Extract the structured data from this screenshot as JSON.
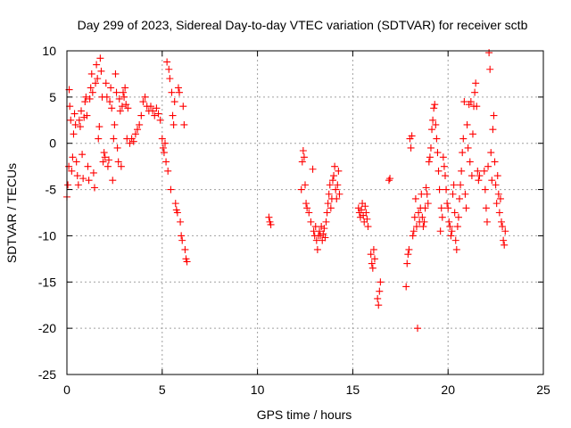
{
  "chart_data": {
    "type": "scatter",
    "title": "Day 299 of 2023, Sidereal Day-to-day VTEC variation (SDTVAR) for receiver sctb",
    "xlabel": "GPS time / hours",
    "ylabel": "SDTVAR / TECUs",
    "xlim": [
      0,
      25
    ],
    "ylim": [
      -25,
      10
    ],
    "xticks": [
      0,
      5,
      10,
      15,
      20,
      25
    ],
    "yticks": [
      -25,
      -20,
      -15,
      -10,
      -5,
      0,
      5,
      10
    ],
    "xtick_labels": [
      "0",
      "5",
      "10",
      "15",
      "20",
      "25"
    ],
    "ytick_labels": [
      "-25",
      "-20",
      "-15",
      "-10",
      "-5",
      "0",
      "5",
      "10"
    ],
    "grid": true,
    "marker": "+",
    "color": "#ff0000",
    "series": [
      {
        "name": "SDTVAR",
        "points": [
          [
            0.0,
            -5.8
          ],
          [
            0.05,
            -4.5
          ],
          [
            0.1,
            -2.5
          ],
          [
            0.12,
            5.8
          ],
          [
            0.15,
            4.0
          ],
          [
            0.2,
            2.5
          ],
          [
            0.25,
            -3.0
          ],
          [
            0.3,
            -1.5
          ],
          [
            0.35,
            1.0
          ],
          [
            0.4,
            3.2
          ],
          [
            0.45,
            2.0
          ],
          [
            0.5,
            -2.0
          ],
          [
            0.55,
            -3.5
          ],
          [
            0.6,
            -4.5
          ],
          [
            0.65,
            2.5
          ],
          [
            0.7,
            1.8
          ],
          [
            0.75,
            3.5
          ],
          [
            0.8,
            -1.2
          ],
          [
            0.85,
            -3.8
          ],
          [
            0.9,
            2.8
          ],
          [
            0.95,
            4.5
          ],
          [
            1.0,
            5.0
          ],
          [
            1.05,
            3.0
          ],
          [
            1.1,
            -2.5
          ],
          [
            1.15,
            -4.0
          ],
          [
            1.2,
            4.8
          ],
          [
            1.25,
            6.0
          ],
          [
            1.3,
            7.5
          ],
          [
            1.35,
            5.5
          ],
          [
            1.4,
            -3.2
          ],
          [
            1.45,
            -4.8
          ],
          [
            1.5,
            6.5
          ],
          [
            1.55,
            8.5
          ],
          [
            1.6,
            7.0
          ],
          [
            1.65,
            0.5
          ],
          [
            1.7,
            1.8
          ],
          [
            1.75,
            9.2
          ],
          [
            1.8,
            7.8
          ],
          [
            1.85,
            5.0
          ],
          [
            1.9,
            -2.0
          ],
          [
            1.95,
            -1.0
          ],
          [
            2.0,
            -1.5
          ],
          [
            2.05,
            6.5
          ],
          [
            2.1,
            5.0
          ],
          [
            2.15,
            -2.5
          ],
          [
            2.2,
            -1.8
          ],
          [
            2.25,
            4.5
          ],
          [
            2.3,
            6.0
          ],
          [
            2.35,
            3.8
          ],
          [
            2.4,
            -4.0
          ],
          [
            2.45,
            0.5
          ],
          [
            2.5,
            2.0
          ],
          [
            2.55,
            7.5
          ],
          [
            2.6,
            5.5
          ],
          [
            2.65,
            -0.5
          ],
          [
            2.7,
            -2.0
          ],
          [
            2.75,
            4.8
          ],
          [
            2.8,
            3.5
          ],
          [
            2.85,
            -2.5
          ],
          [
            2.9,
            4.0
          ],
          [
            2.95,
            5.5
          ],
          [
            3.0,
            5.0
          ],
          [
            3.05,
            6.0
          ],
          [
            3.1,
            4.2
          ],
          [
            3.15,
            0.5
          ],
          [
            3.2,
            3.8
          ],
          [
            3.3,
            0.0
          ],
          [
            3.4,
            0.5
          ],
          [
            3.5,
            0.2
          ],
          [
            3.6,
            1.0
          ],
          [
            3.7,
            1.5
          ],
          [
            3.8,
            2.0
          ],
          [
            3.9,
            3.0
          ],
          [
            4.0,
            4.5
          ],
          [
            4.1,
            5.0
          ],
          [
            4.2,
            4.0
          ],
          [
            4.3,
            3.5
          ],
          [
            4.4,
            4.0
          ],
          [
            4.5,
            3.5
          ],
          [
            4.6,
            3.0
          ],
          [
            4.7,
            3.8
          ],
          [
            4.8,
            3.2
          ],
          [
            4.9,
            2.5
          ],
          [
            5.0,
            0.5
          ],
          [
            5.05,
            -0.5
          ],
          [
            5.1,
            -1.0
          ],
          [
            5.15,
            0.0
          ],
          [
            5.2,
            -2.0
          ],
          [
            5.25,
            8.8
          ],
          [
            5.3,
            -3.0
          ],
          [
            5.35,
            8.0
          ],
          [
            5.4,
            7.0
          ],
          [
            5.45,
            -5.0
          ],
          [
            5.5,
            5.5
          ],
          [
            5.55,
            3.0
          ],
          [
            5.6,
            2.0
          ],
          [
            5.65,
            4.5
          ],
          [
            5.7,
            -6.5
          ],
          [
            5.75,
            -7.2
          ],
          [
            5.8,
            -7.5
          ],
          [
            5.85,
            6.0
          ],
          [
            5.9,
            5.5
          ],
          [
            5.95,
            -8.5
          ],
          [
            6.0,
            -10.0
          ],
          [
            6.05,
            -10.5
          ],
          [
            6.1,
            4.0
          ],
          [
            6.15,
            2.0
          ],
          [
            6.2,
            -11.5
          ],
          [
            6.25,
            -12.5
          ],
          [
            6.3,
            -12.8
          ],
          [
            10.6,
            -8.0
          ],
          [
            10.65,
            -8.5
          ],
          [
            10.7,
            -8.8
          ],
          [
            12.3,
            -5.0
          ],
          [
            12.35,
            -2.0
          ],
          [
            12.4,
            -0.8
          ],
          [
            12.45,
            -1.5
          ],
          [
            12.5,
            -4.5
          ],
          [
            12.55,
            -6.5
          ],
          [
            12.6,
            -7.0
          ],
          [
            12.7,
            -7.5
          ],
          [
            12.8,
            -8.5
          ],
          [
            12.9,
            -2.8
          ],
          [
            12.95,
            -9.5
          ],
          [
            13.0,
            -10.0
          ],
          [
            13.05,
            -9.0
          ],
          [
            13.1,
            -10.5
          ],
          [
            13.15,
            -11.5
          ],
          [
            13.2,
            -10.0
          ],
          [
            13.25,
            -9.5
          ],
          [
            13.3,
            -10.0
          ],
          [
            13.35,
            -9.0
          ],
          [
            13.4,
            -10.5
          ],
          [
            13.45,
            -9.8
          ],
          [
            13.5,
            -9.2
          ],
          [
            13.55,
            -10.2
          ],
          [
            13.6,
            -8.5
          ],
          [
            13.65,
            -7.5
          ],
          [
            13.7,
            -6.5
          ],
          [
            13.75,
            -5.5
          ],
          [
            13.8,
            -4.5
          ],
          [
            13.85,
            -7.0
          ],
          [
            13.9,
            -6.0
          ],
          [
            13.95,
            -4.0
          ],
          [
            14.0,
            -3.5
          ],
          [
            14.05,
            -2.5
          ],
          [
            14.1,
            -5.0
          ],
          [
            14.15,
            -6.0
          ],
          [
            14.2,
            -4.5
          ],
          [
            14.25,
            -3.0
          ],
          [
            14.3,
            -5.5
          ],
          [
            15.3,
            -7.0
          ],
          [
            15.35,
            -7.5
          ],
          [
            15.4,
            -8.0
          ],
          [
            15.45,
            -7.2
          ],
          [
            15.5,
            -6.5
          ],
          [
            15.55,
            -7.8
          ],
          [
            15.6,
            -8.5
          ],
          [
            15.65,
            -6.8
          ],
          [
            15.7,
            -7.5
          ],
          [
            15.75,
            -8.2
          ],
          [
            15.8,
            -9.0
          ],
          [
            15.95,
            -12.0
          ],
          [
            16.0,
            -13.0
          ],
          [
            16.05,
            -13.5
          ],
          [
            16.1,
            -11.5
          ],
          [
            16.15,
            -12.5
          ],
          [
            16.3,
            -16.8
          ],
          [
            16.35,
            -17.5
          ],
          [
            16.4,
            -16.0
          ],
          [
            16.45,
            -15.0
          ],
          [
            16.9,
            -4.0
          ],
          [
            16.95,
            -3.8
          ],
          [
            17.8,
            -15.5
          ],
          [
            17.85,
            -13.0
          ],
          [
            17.9,
            -12.0
          ],
          [
            17.95,
            -11.5
          ],
          [
            18.0,
            0.5
          ],
          [
            18.05,
            -0.5
          ],
          [
            18.1,
            0.8
          ],
          [
            18.15,
            -10.0
          ],
          [
            18.2,
            -9.5
          ],
          [
            18.25,
            -8.0
          ],
          [
            18.3,
            -6.0
          ],
          [
            18.35,
            -9.0
          ],
          [
            18.4,
            -20.0
          ],
          [
            18.45,
            -7.5
          ],
          [
            18.5,
            -8.5
          ],
          [
            18.55,
            -7.0
          ],
          [
            18.6,
            -5.5
          ],
          [
            18.65,
            -8.0
          ],
          [
            18.7,
            -9.0
          ],
          [
            18.75,
            -8.5
          ],
          [
            18.8,
            -7.0
          ],
          [
            18.85,
            -4.8
          ],
          [
            18.9,
            -5.5
          ],
          [
            18.95,
            -6.5
          ],
          [
            19.0,
            -2.0
          ],
          [
            19.05,
            -1.5
          ],
          [
            19.1,
            -0.5
          ],
          [
            19.15,
            1.5
          ],
          [
            19.2,
            2.5
          ],
          [
            19.25,
            3.8
          ],
          [
            19.3,
            4.2
          ],
          [
            19.35,
            2.0
          ],
          [
            19.4,
            0.5
          ],
          [
            19.45,
            -1.0
          ],
          [
            19.5,
            -3.0
          ],
          [
            19.55,
            -5.0
          ],
          [
            19.6,
            -9.5
          ],
          [
            19.65,
            -7.0
          ],
          [
            19.7,
            -8.0
          ],
          [
            19.75,
            -1.5
          ],
          [
            19.8,
            -2.5
          ],
          [
            19.85,
            -3.5
          ],
          [
            19.9,
            -5.0
          ],
          [
            19.95,
            -6.5
          ],
          [
            20.0,
            -7.0
          ],
          [
            20.05,
            -8.5
          ],
          [
            20.1,
            -9.0
          ],
          [
            20.15,
            -10.0
          ],
          [
            20.2,
            -9.5
          ],
          [
            20.25,
            -5.5
          ],
          [
            20.3,
            -4.5
          ],
          [
            20.35,
            -7.5
          ],
          [
            20.4,
            -10.5
          ],
          [
            20.45,
            -11.5
          ],
          [
            20.5,
            -9.0
          ],
          [
            20.55,
            -8.0
          ],
          [
            20.6,
            -6.0
          ],
          [
            20.65,
            -4.5
          ],
          [
            20.7,
            -3.0
          ],
          [
            20.75,
            -1.0
          ],
          [
            20.8,
            0.5
          ],
          [
            20.85,
            4.5
          ],
          [
            20.9,
            -5.5
          ],
          [
            20.95,
            -7.0
          ],
          [
            21.0,
            2.0
          ],
          [
            21.05,
            -0.5
          ],
          [
            21.1,
            4.2
          ],
          [
            21.15,
            -2.0
          ],
          [
            21.2,
            4.5
          ],
          [
            21.25,
            -3.5
          ],
          [
            21.3,
            1.0
          ],
          [
            21.35,
            4.0
          ],
          [
            21.4,
            5.5
          ],
          [
            21.45,
            6.5
          ],
          [
            21.5,
            4.0
          ],
          [
            21.55,
            -3.0
          ],
          [
            21.6,
            -4.0
          ],
          [
            21.65,
            -3.5
          ],
          [
            21.9,
            -3.0
          ],
          [
            21.95,
            -5.0
          ],
          [
            22.0,
            -7.0
          ],
          [
            22.05,
            -8.5
          ],
          [
            22.1,
            -2.5
          ],
          [
            22.15,
            9.8
          ],
          [
            22.2,
            8.0
          ],
          [
            22.25,
            -1.0
          ],
          [
            22.3,
            -4.0
          ],
          [
            22.35,
            1.5
          ],
          [
            22.4,
            3.0
          ],
          [
            22.45,
            -2.0
          ],
          [
            22.5,
            -4.5
          ],
          [
            22.55,
            -6.5
          ],
          [
            22.6,
            -3.5
          ],
          [
            22.65,
            -5.5
          ],
          [
            22.7,
            -7.5
          ],
          [
            22.75,
            -6.0
          ],
          [
            22.8,
            -8.5
          ],
          [
            22.85,
            -9.0
          ],
          [
            22.9,
            -10.5
          ],
          [
            22.95,
            -11.0
          ],
          [
            23.0,
            -9.5
          ]
        ]
      }
    ]
  }
}
